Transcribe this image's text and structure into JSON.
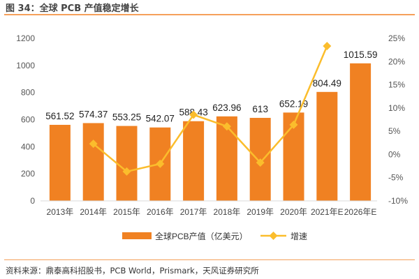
{
  "title": "图 34：全球 PCB 产值稳定增长",
  "source": "资料来源：鼎泰高科招股书，PCB World，Prismark，天风证券研究所",
  "chart_data": {
    "type": "bar+line",
    "categories": [
      "2013年",
      "2014年",
      "2015年",
      "2016年",
      "2017年",
      "2018年",
      "2019年",
      "2020年",
      "2021年E",
      "2026年E"
    ],
    "series": [
      {
        "name": "全球PCB产值（亿美元）",
        "type": "bar",
        "axis": "left",
        "color": "#f08122",
        "values": [
          561.52,
          574.37,
          553.25,
          542.07,
          588.43,
          623.96,
          613,
          652.19,
          804.49,
          1015.59
        ],
        "labels": [
          "561.52",
          "574.37",
          "553.25",
          "542.07",
          "588.43",
          "623.96",
          "613",
          "652.19",
          "804.49",
          "1015.59"
        ]
      },
      {
        "name": "增速",
        "type": "line",
        "axis": "right",
        "color": "#fbbd2c",
        "values": [
          null,
          2.29,
          -3.68,
          -2.02,
          8.55,
          6.04,
          -1.76,
          6.39,
          23.35,
          null
        ]
      }
    ],
    "yleft": {
      "lim": [
        0,
        1200
      ],
      "ticks": [
        "0",
        "200",
        "400",
        "600",
        "800",
        "1000",
        "1200"
      ]
    },
    "yright": {
      "lim": [
        -10,
        25
      ],
      "ticks": [
        "-10%",
        "-5%",
        "0%",
        "5%",
        "10%",
        "15%",
        "20%",
        "25%"
      ]
    },
    "legend": "bottom",
    "grid": false
  }
}
